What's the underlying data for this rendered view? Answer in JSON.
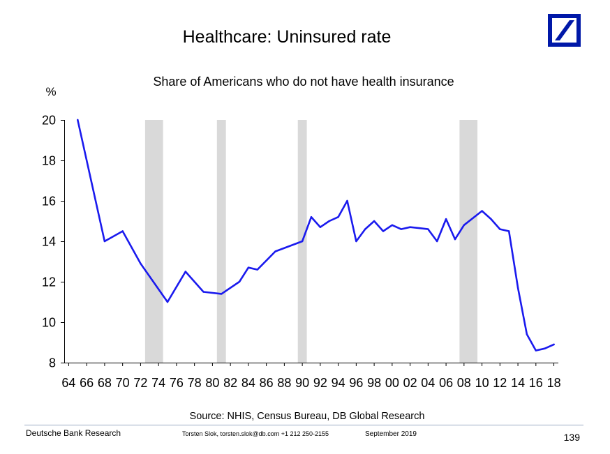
{
  "slide": {
    "title": "Healthcare: Uninsured rate",
    "source": "Source: NHIS, Census Bureau, DB Global Research",
    "source_color": "#a6a6a6",
    "footer": {
      "brand": "Deutsche Bank Research",
      "brand_color": "#1f3f96",
      "contact": "Torsten Slok, torsten.slok@db.com +1 212 250-2155",
      "date": "September 2019",
      "page_number": "139"
    }
  },
  "logo": {
    "icon": "deutsche-bank-logo",
    "color": "#0018a8"
  },
  "chart_data": {
    "type": "line",
    "title": "Share of Americans who do not have health insurance",
    "ylabel": "%",
    "x": [
      1965,
      1968,
      1970,
      1972,
      1975,
      1977,
      1979,
      1981,
      1983,
      1984,
      1985,
      1987,
      1990,
      1991,
      1992,
      1993,
      1994,
      1995,
      1996,
      1997,
      1998,
      1999,
      2000,
      2001,
      2002,
      2003,
      2004,
      2005,
      2006,
      2007,
      2008,
      2010,
      2011,
      2012,
      2013,
      2014,
      2015,
      2016,
      2017,
      2018
    ],
    "y": [
      20.0,
      14.0,
      14.5,
      12.9,
      11.0,
      12.5,
      11.5,
      11.4,
      12.0,
      12.7,
      12.6,
      13.5,
      14.0,
      15.2,
      14.7,
      15.0,
      15.2,
      16.0,
      14.0,
      14.6,
      15.0,
      14.5,
      14.8,
      14.6,
      14.7,
      14.65,
      14.6,
      14.0,
      15.1,
      14.1,
      14.8,
      15.5,
      15.1,
      14.6,
      14.5,
      11.7,
      9.4,
      8.6,
      8.7,
      8.9
    ],
    "xlim": [
      1963.5,
      2018.5
    ],
    "ylim": [
      8,
      20
    ],
    "y_ticks": [
      8,
      10,
      12,
      14,
      16,
      18,
      20
    ],
    "x_ticks": [
      1964,
      1966,
      1968,
      1970,
      1972,
      1974,
      1976,
      1978,
      1980,
      1982,
      1984,
      1986,
      1988,
      1990,
      1992,
      1994,
      1996,
      1998,
      2000,
      2002,
      2004,
      2006,
      2008,
      2010,
      2012,
      2014,
      2016,
      2018
    ],
    "x_tick_labels": [
      "64",
      "66",
      "68",
      "70",
      "72",
      "74",
      "76",
      "78",
      "80",
      "82",
      "84",
      "86",
      "88",
      "90",
      "92",
      "94",
      "96",
      "98",
      "00",
      "02",
      "04",
      "06",
      "08",
      "10",
      "12",
      "14",
      "16",
      "18"
    ],
    "recessions": [
      [
        1972.5,
        1974.5
      ],
      [
        1980.5,
        1981.5
      ],
      [
        1989.5,
        1990.5
      ],
      [
        2007.5,
        2009.5
      ]
    ],
    "grid": false,
    "line_color": "#1a1aee",
    "recession_color": "#d9d9d9"
  }
}
